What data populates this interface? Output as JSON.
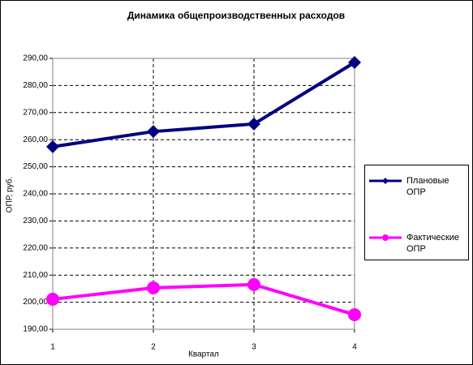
{
  "chart_data": {
    "type": "line",
    "title": "Динамика общепроизводственных расходов",
    "xlabel": "Квартал",
    "ylabel": "ОПР, руб.",
    "x": [
      1,
      2,
      3,
      4
    ],
    "xlim": [
      1,
      4
    ],
    "xticks": [
      1,
      2,
      3,
      4
    ],
    "ylim": [
      190,
      290
    ],
    "yticks": [
      {
        "value": 190,
        "label": "190,00"
      },
      {
        "value": 200,
        "label": "200,00"
      },
      {
        "value": 210,
        "label": "210,00"
      },
      {
        "value": 220,
        "label": "220,00"
      },
      {
        "value": 230,
        "label": "230,00"
      },
      {
        "value": 240,
        "label": "240,00"
      },
      {
        "value": 250,
        "label": "250,00"
      },
      {
        "value": 260,
        "label": "260,00"
      },
      {
        "value": 270,
        "label": "270,00"
      },
      {
        "value": 280,
        "label": "280,00"
      },
      {
        "value": 290,
        "label": "290,00"
      }
    ],
    "grid": true,
    "legend": "right",
    "series": [
      {
        "name": "Плановые ОПР",
        "color": "#000080",
        "marker": "diamond",
        "values": [
          257.4,
          263,
          265.8,
          288.5
        ]
      },
      {
        "name": "Фактические ОПР",
        "color": "#ff00ff",
        "marker": "circle",
        "values": [
          201.1,
          205.3,
          206.5,
          195.4
        ]
      }
    ]
  }
}
